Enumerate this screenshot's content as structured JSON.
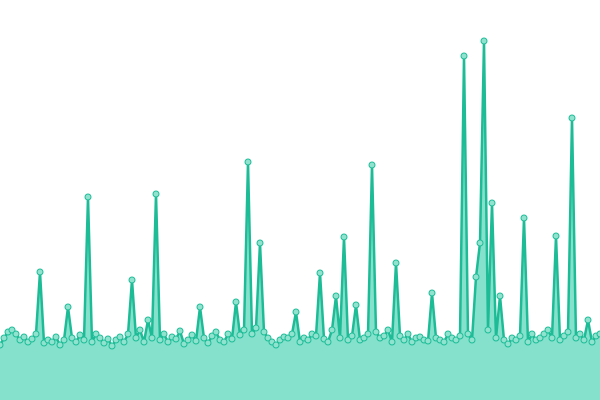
{
  "chart_data": {
    "type": "area",
    "values": [
      55,
      62,
      68,
      70,
      66,
      60,
      63,
      58,
      61,
      66,
      128,
      57,
      60,
      58,
      63,
      55,
      60,
      93,
      62,
      58,
      65,
      60,
      203,
      58,
      66,
      62,
      57,
      61,
      54,
      60,
      63,
      58,
      66,
      120,
      62,
      70,
      58,
      80,
      62,
      206,
      60,
      66,
      58,
      63,
      61,
      69,
      56,
      60,
      65,
      59,
      93,
      62,
      57,
      64,
      68,
      60,
      58,
      66,
      61,
      98,
      65,
      70,
      238,
      66,
      72,
      157,
      68,
      62,
      58,
      55,
      60,
      63,
      62,
      66,
      88,
      58,
      62,
      60,
      66,
      64,
      127,
      61,
      58,
      70,
      104,
      62,
      163,
      60,
      64,
      95,
      60,
      62,
      66,
      235,
      68,
      62,
      64,
      70,
      58,
      137,
      64,
      60,
      66,
      58,
      62,
      63,
      60,
      59,
      107,
      62,
      60,
      58,
      66,
      62,
      60,
      64,
      344,
      66,
      60,
      123,
      157,
      359,
      70,
      197,
      62,
      104,
      60,
      56,
      62,
      60,
      64,
      182,
      58,
      66,
      60,
      62,
      66,
      70,
      62,
      164,
      60,
      64,
      68,
      282,
      62,
      66,
      60,
      80,
      58,
      64,
      66
    ],
    "color": "#1dbc97",
    "fill_color": "#86e1cc",
    "marker_fill": "#8fe3cf",
    "ylim": [
      0,
      400
    ]
  }
}
